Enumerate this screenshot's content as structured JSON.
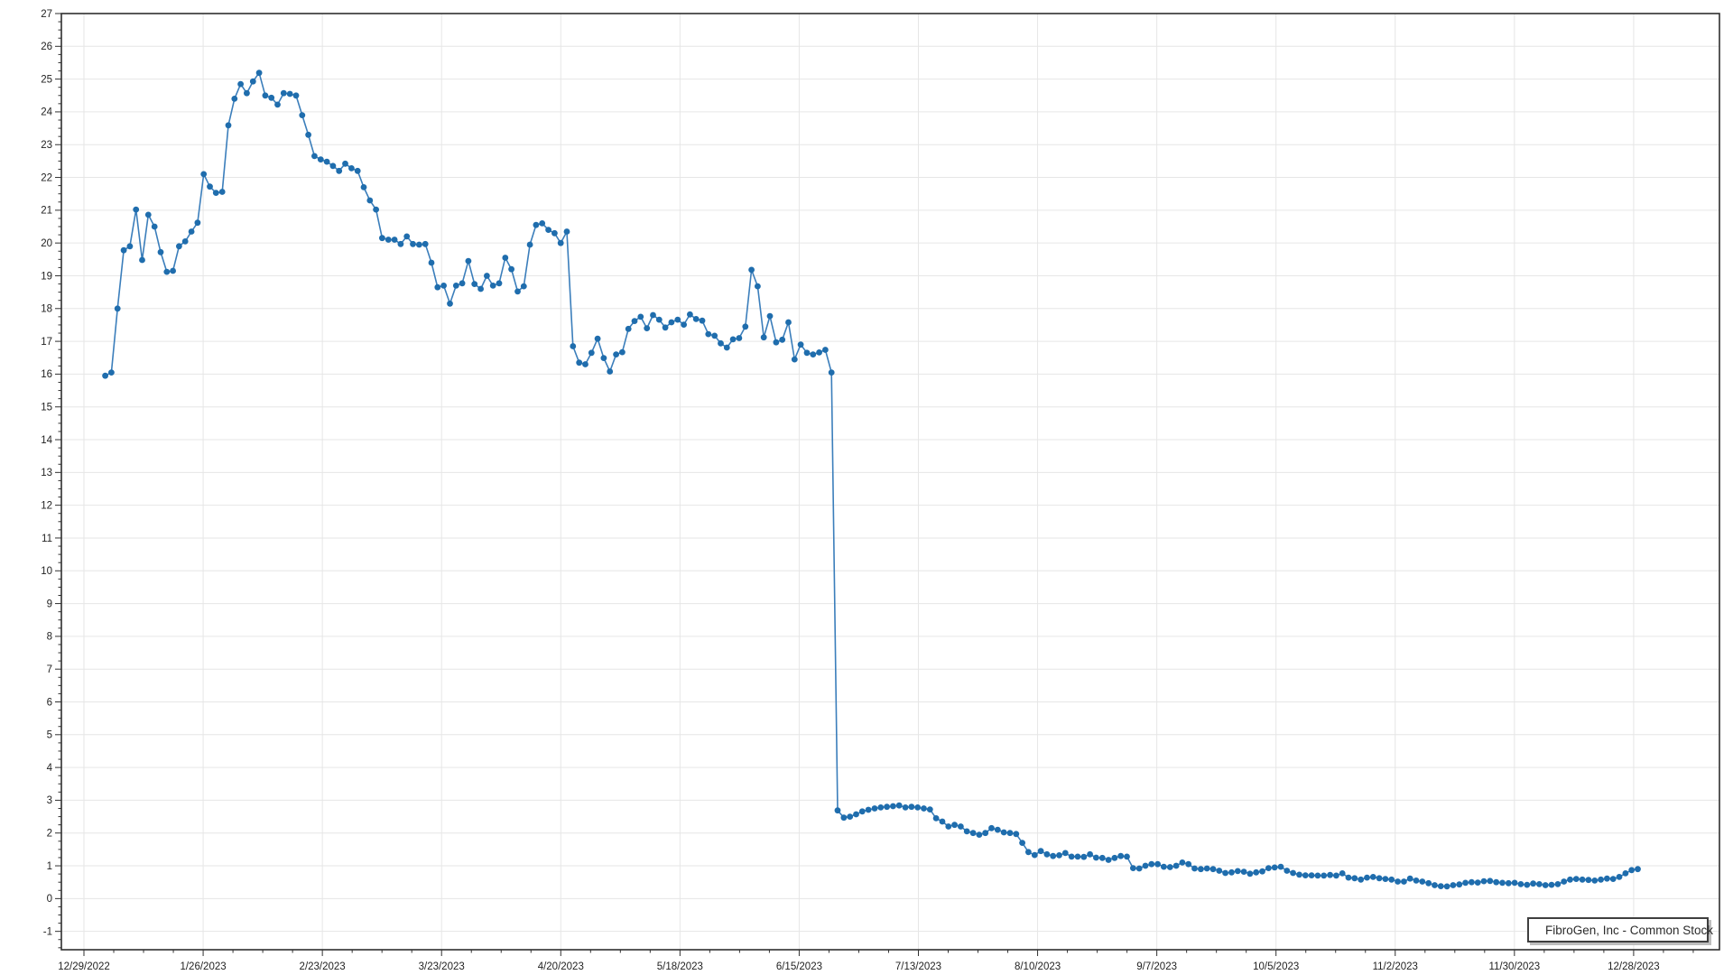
{
  "page": {
    "background": "#ffffff"
  },
  "legend": {
    "label": "FibroGen, Inc - Common Stock"
  },
  "chart_data": {
    "type": "line",
    "title": "",
    "xlabel": "",
    "ylabel": "",
    "grid": true,
    "legend_position": "bottom-right",
    "x_tick_labels": [
      "12/29/2022",
      "1/26/2023",
      "2/23/2023",
      "3/23/2023",
      "4/20/2023",
      "5/18/2023",
      "6/15/2023",
      "7/13/2023",
      "8/10/2023",
      "9/7/2023",
      "10/5/2023",
      "11/2/2023",
      "11/30/2023",
      "12/28/2023"
    ],
    "y_tick_min": -1,
    "y_tick_max": 27,
    "y_tick_step": 1,
    "ylim": [
      -1.56,
      27
    ],
    "colors": {
      "line": "#3b7ebb",
      "marker": "#1f6dad",
      "grid": "#e6e6e6",
      "border": "#2f2f2f",
      "tick": "#2f2f2f",
      "text": "#222222",
      "legend_border": "#3f3f3f",
      "legend_shadow": "#bdbdbd"
    },
    "series": [
      {
        "name": "FibroGen, Inc - Common Stock",
        "values": [
          15.95,
          16.05,
          18.0,
          19.78,
          19.9,
          21.02,
          19.48,
          20.86,
          20.5,
          19.72,
          19.12,
          19.15,
          19.9,
          20.05,
          20.35,
          20.62,
          22.1,
          21.72,
          21.53,
          21.56,
          23.59,
          24.4,
          24.85,
          24.57,
          24.93,
          25.19,
          24.5,
          24.43,
          24.22,
          24.57,
          24.55,
          24.5,
          23.9,
          23.3,
          22.65,
          22.55,
          22.48,
          22.35,
          22.2,
          22.42,
          22.28,
          22.2,
          21.7,
          21.3,
          21.02,
          20.15,
          20.1,
          20.1,
          19.97,
          20.2,
          19.97,
          19.95,
          19.97,
          19.4,
          18.65,
          18.7,
          18.15,
          18.7,
          18.77,
          19.45,
          18.75,
          18.6,
          19.0,
          18.7,
          18.77,
          19.55,
          19.2,
          18.52,
          18.68,
          19.95,
          20.55,
          20.6,
          20.4,
          20.3,
          20.0,
          20.35,
          16.85,
          16.35,
          16.3,
          16.65,
          17.08,
          16.49,
          16.08,
          16.6,
          16.67,
          17.38,
          17.62,
          17.75,
          17.4,
          17.8,
          17.66,
          17.42,
          17.58,
          17.66,
          17.51,
          17.82,
          17.68,
          17.63,
          17.22,
          17.17,
          16.94,
          16.81,
          17.06,
          17.1,
          17.45,
          19.18,
          18.68,
          17.12,
          17.77,
          16.97,
          17.05,
          17.58,
          16.45,
          16.9,
          16.65,
          16.6,
          16.66,
          16.74,
          16.05,
          2.69,
          2.47,
          2.5,
          2.57,
          2.66,
          2.71,
          2.75,
          2.78,
          2.8,
          2.82,
          2.84,
          2.78,
          2.8,
          2.78,
          2.75,
          2.72,
          2.45,
          2.35,
          2.2,
          2.25,
          2.2,
          2.05,
          2.0,
          1.95,
          2.0,
          2.15,
          2.1,
          2.02,
          2.0,
          1.97,
          1.7,
          1.42,
          1.33,
          1.45,
          1.35,
          1.3,
          1.32,
          1.39,
          1.28,
          1.28,
          1.27,
          1.35,
          1.25,
          1.24,
          1.18,
          1.24,
          1.3,
          1.28,
          0.93,
          0.92,
          1.0,
          1.05,
          1.05,
          0.97,
          0.96,
          1.0,
          1.1,
          1.05,
          0.92,
          0.9,
          0.92,
          0.9,
          0.85,
          0.78,
          0.8,
          0.84,
          0.82,
          0.76,
          0.8,
          0.83,
          0.93,
          0.95,
          0.97,
          0.85,
          0.78,
          0.73,
          0.71,
          0.71,
          0.7,
          0.7,
          0.72,
          0.7,
          0.77,
          0.64,
          0.62,
          0.58,
          0.64,
          0.66,
          0.62,
          0.6,
          0.58,
          0.52,
          0.52,
          0.61,
          0.55,
          0.52,
          0.47,
          0.41,
          0.38,
          0.37,
          0.41,
          0.43,
          0.48,
          0.5,
          0.49,
          0.53,
          0.54,
          0.5,
          0.48,
          0.47,
          0.48,
          0.44,
          0.42,
          0.46,
          0.44,
          0.41,
          0.42,
          0.44,
          0.52,
          0.58,
          0.6,
          0.58,
          0.57,
          0.55,
          0.58,
          0.61,
          0.6,
          0.66,
          0.77,
          0.87,
          0.9
        ]
      }
    ]
  }
}
